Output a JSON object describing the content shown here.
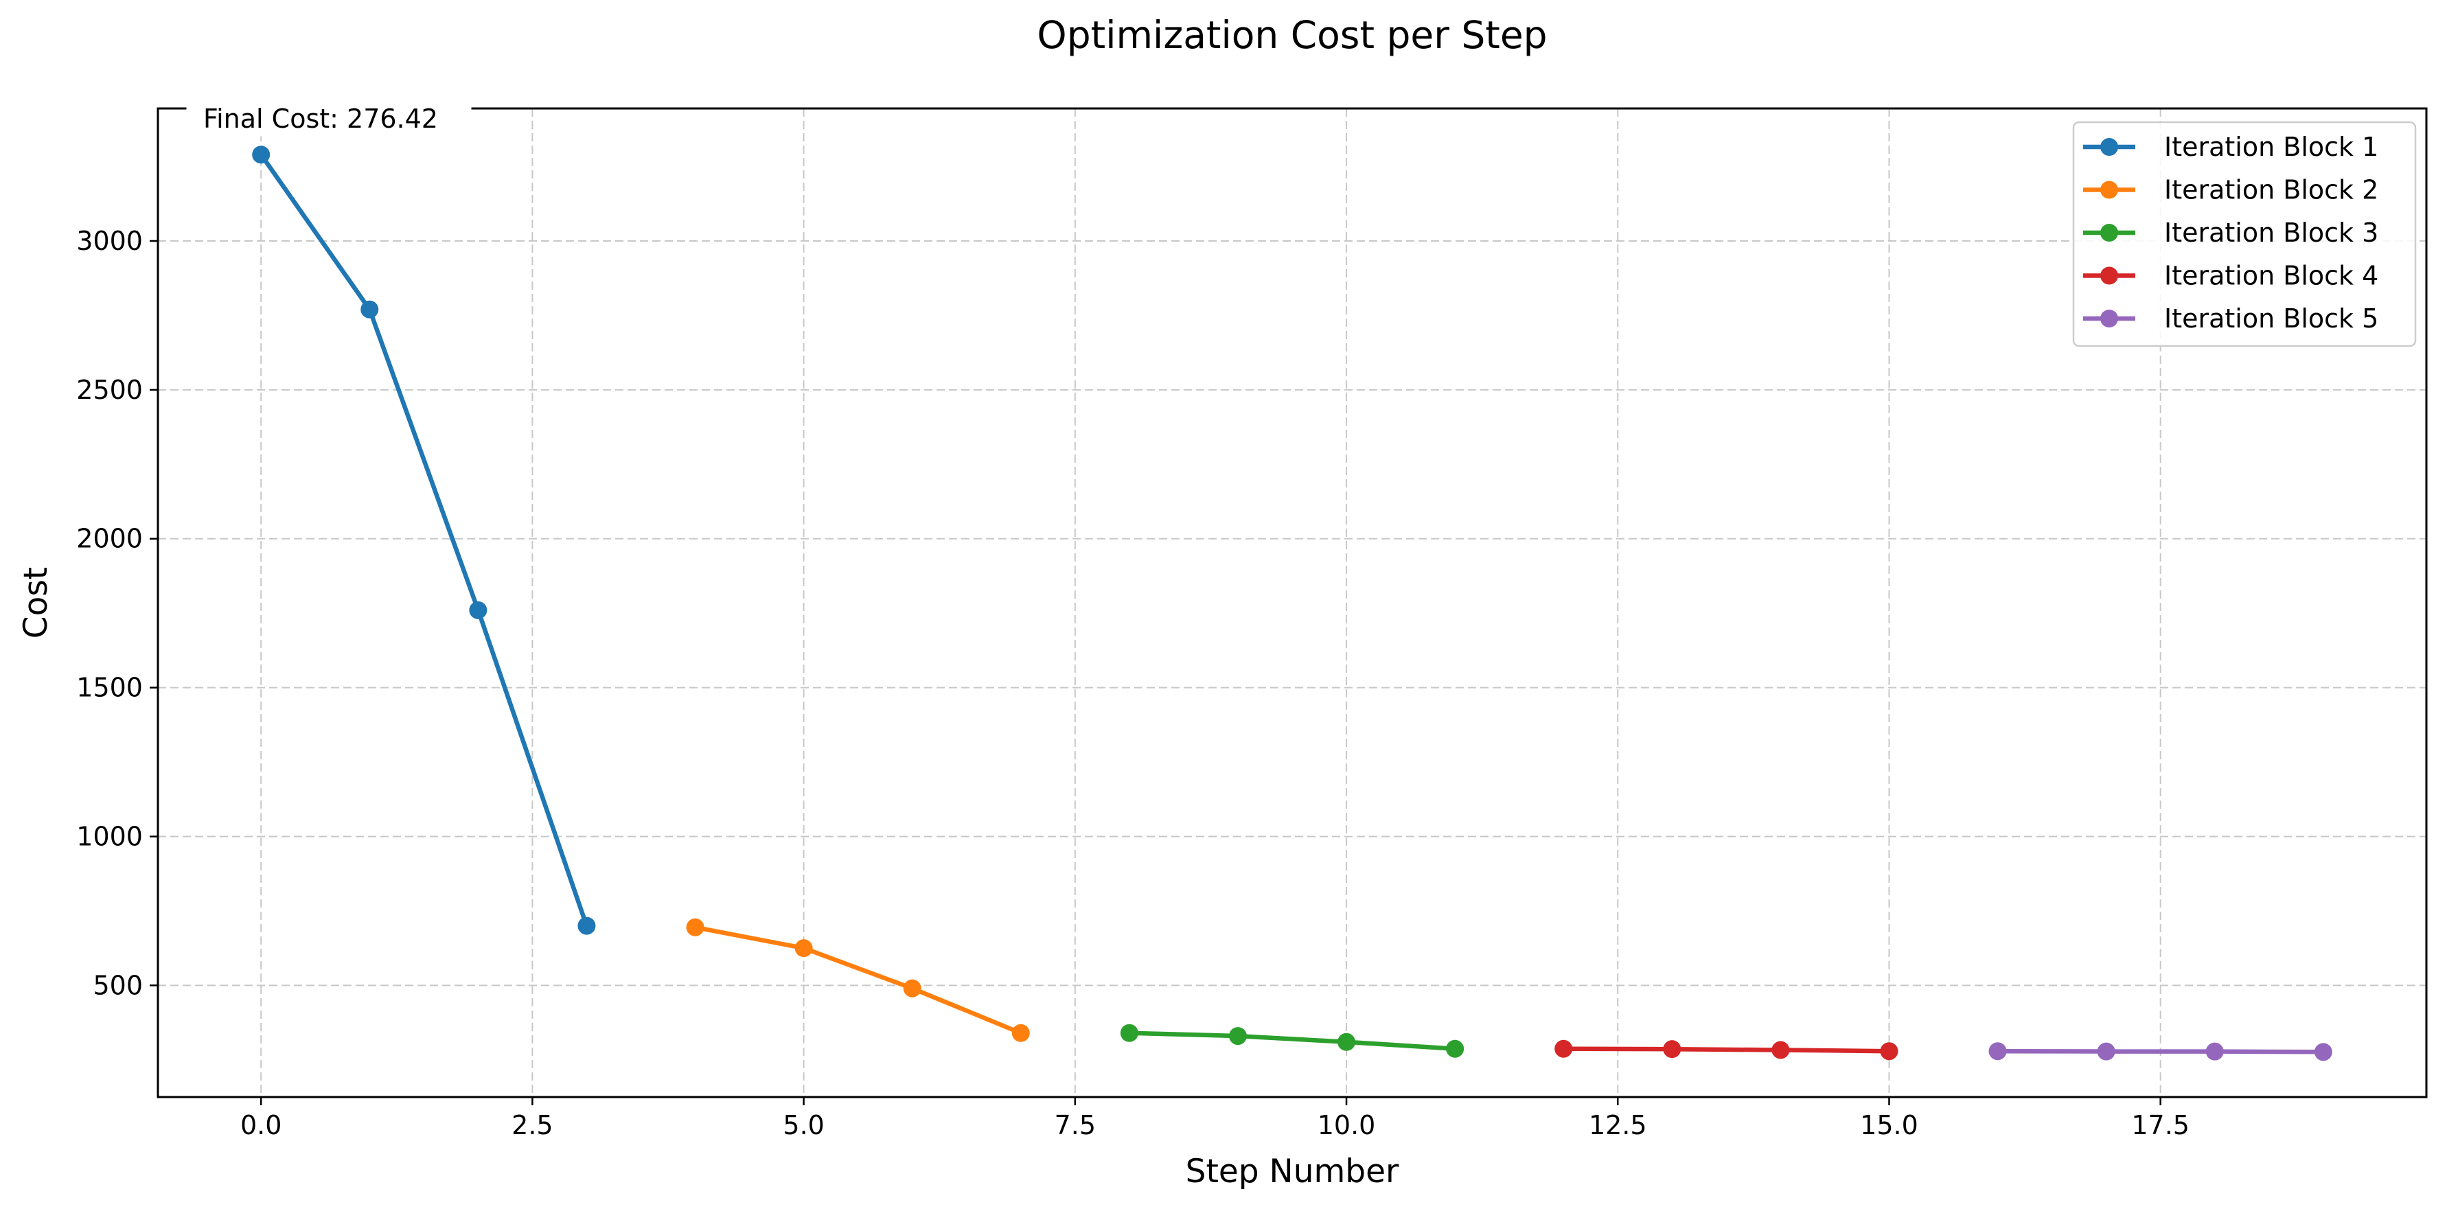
{
  "chart_data": {
    "type": "line",
    "title": "Optimization Cost per Step",
    "xlabel": "Step Number",
    "ylabel": "Cost",
    "xlim": [
      -0.95,
      19.95
    ],
    "ylim": [
      125,
      3445
    ],
    "xticks": [
      0.0,
      2.5,
      5.0,
      7.5,
      10.0,
      12.5,
      15.0,
      17.5
    ],
    "xtick_labels": [
      "0.0",
      "2.5",
      "5.0",
      "7.5",
      "10.0",
      "12.5",
      "15.0",
      "17.5"
    ],
    "yticks": [
      500,
      1000,
      1500,
      2000,
      2500,
      3000
    ],
    "ytick_labels": [
      "500",
      "1000",
      "1500",
      "2000",
      "2500",
      "3000"
    ],
    "grid": true,
    "legend_position": "top-right",
    "annotation": "Final Cost: 276.42",
    "series": [
      {
        "name": "Iteration Block 1",
        "color": "#1f77b4",
        "x": [
          0,
          1,
          2,
          3
        ],
        "y": [
          3290,
          2770,
          1760,
          700
        ]
      },
      {
        "name": "Iteration Block 2",
        "color": "#ff7f0e",
        "x": [
          4,
          5,
          6,
          7
        ],
        "y": [
          695,
          625,
          490,
          340
        ]
      },
      {
        "name": "Iteration Block 3",
        "color": "#2ca02c",
        "x": [
          8,
          9,
          10,
          11
        ],
        "y": [
          340,
          330,
          310,
          287
        ]
      },
      {
        "name": "Iteration Block 4",
        "color": "#d62728",
        "x": [
          12,
          13,
          14,
          15
        ],
        "y": [
          287,
          286,
          283,
          279
        ]
      },
      {
        "name": "Iteration Block 5",
        "color": "#9467bd",
        "x": [
          16,
          17,
          18,
          19
        ],
        "y": [
          279,
          278,
          278,
          276.42
        ]
      }
    ]
  }
}
